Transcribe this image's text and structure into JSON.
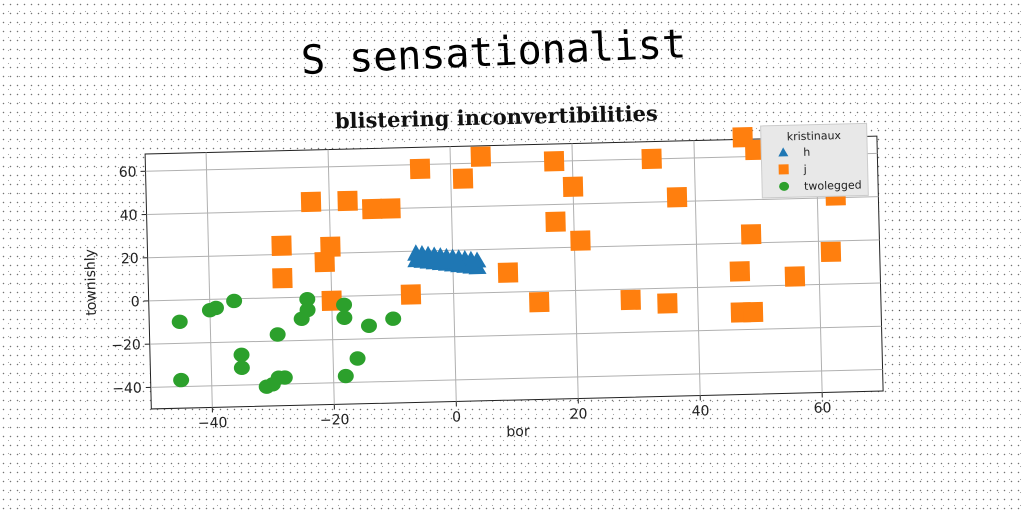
{
  "figure": {
    "suptitle": "S sensationalist"
  },
  "chart_data": {
    "type": "scatter",
    "title": "blistering inconvertibilities",
    "xlabel": "bor",
    "ylabel": "townishly",
    "xlim": [
      -50,
      70
    ],
    "ylim": [
      -50,
      68
    ],
    "xticks": [
      -40,
      -20,
      0,
      20,
      40,
      60
    ],
    "yticks": [
      -40,
      -20,
      0,
      20,
      40,
      60
    ],
    "xtick_labels": [
      "−40",
      "−20",
      "0",
      "20",
      "40",
      "60"
    ],
    "ytick_labels": [
      "−40",
      "−20",
      "0",
      "20",
      "40",
      "60"
    ],
    "grid": true,
    "legend": {
      "title": "kristinaux",
      "position": "top-right"
    },
    "series": [
      {
        "name": "h",
        "marker": "triangle",
        "color": "#1f77b4",
        "x": [
          -6,
          -5,
          -4,
          -3,
          -2,
          -1,
          0,
          1,
          2,
          3,
          4,
          -6,
          -5,
          -4,
          -3,
          -2,
          -1,
          0,
          1,
          2,
          3,
          4,
          -5,
          -3,
          -1,
          1,
          3
        ],
        "y": [
          16,
          15.6,
          15.2,
          14.8,
          14.4,
          14,
          13.6,
          13.2,
          12.8,
          12.4,
          12,
          19,
          18.6,
          18.2,
          17.8,
          17.4,
          17,
          16.6,
          16.2,
          15.8,
          15.4,
          15,
          17,
          16,
          15,
          14,
          13
        ]
      },
      {
        "name": "j",
        "marker": "square",
        "color": "#ff7f0e",
        "x": [
          -23,
          -17,
          -13,
          -10,
          -5,
          2,
          5,
          17,
          20,
          33,
          37,
          48,
          50,
          63,
          -28,
          -20,
          -21,
          -28,
          -20,
          -7,
          9,
          14,
          17,
          21,
          29,
          35,
          47,
          47,
          49,
          56,
          62,
          59,
          49
        ],
        "y": [
          44,
          44,
          40,
          40,
          58,
          53,
          63,
          60,
          48,
          60,
          42,
          69,
          63,
          41,
          24,
          23,
          16,
          9,
          -2,
          0,
          9,
          -5,
          32,
          23,
          -5,
          -7,
          -12,
          7,
          24,
          4,
          15,
          69,
          -12
        ]
      },
      {
        "name": "twolegged",
        "marker": "circle",
        "color": "#2ca02c",
        "x": [
          -45,
          -40,
          -39,
          -36,
          -45,
          -30,
          -28,
          -29,
          -25,
          -24,
          -24,
          -18,
          -18,
          -14,
          -10,
          -35,
          -35,
          -31,
          -29,
          -18,
          -16
        ],
        "y": [
          -10,
          -5,
          -4,
          -1,
          -37,
          -40,
          -37,
          -17,
          -10,
          -1,
          -6,
          -4,
          -10,
          -14,
          -11,
          -26,
          -32,
          -41,
          -37,
          -37,
          -29
        ]
      }
    ]
  }
}
